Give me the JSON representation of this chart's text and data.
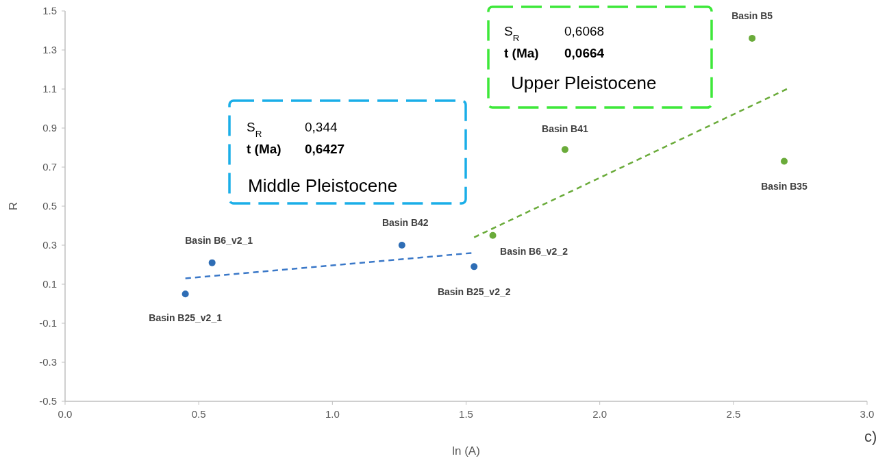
{
  "chart_data": {
    "type": "scatter",
    "xlabel": "ln (A)",
    "ylabel": "R",
    "xlim": [
      0,
      3
    ],
    "xticks": [
      {
        "value": 0,
        "label": "0.0"
      },
      {
        "value": 0.5,
        "label": "0.5"
      },
      {
        "value": 1,
        "label": "1.0"
      },
      {
        "value": 1.5,
        "label": "1.5"
      },
      {
        "value": 2,
        "label": "2.0"
      },
      {
        "value": 2.5,
        "label": "2.5"
      },
      {
        "value": 3,
        "label": "3.0"
      }
    ],
    "ylim": [
      -0.5,
      1.5
    ],
    "yticks": [
      -0.5,
      -0.3,
      -0.1,
      0.1,
      0.3,
      0.5,
      0.7,
      0.9,
      1.1,
      1.3,
      1.5
    ],
    "grid": false,
    "series": [
      {
        "color": "#2e6db5",
        "marker": "circle",
        "x": [
          0.45,
          0.55,
          1.26,
          1.53
        ],
        "values": [
          0.05,
          0.21,
          0.3,
          0.19
        ]
      },
      {
        "color": "#6aab3a",
        "marker": "circle",
        "x": [
          1.6,
          1.87,
          2.57,
          2.69
        ],
        "values": [
          0.35,
          0.79,
          1.36,
          0.73
        ]
      },
      {
        "type": "line",
        "color": "#3a78c8",
        "line_style": "dashed",
        "marker": "none",
        "x": [
          0.45,
          1.52
        ],
        "values": [
          0.13,
          0.26
        ]
      },
      {
        "type": "line",
        "color": "#6aab3a",
        "line_style": "dashed",
        "marker": "none",
        "x": [
          1.53,
          2.7
        ],
        "values": [
          0.34,
          1.1
        ]
      }
    ],
    "annotations": [
      {
        "text": "Basin B25_v2_1",
        "x": 0.45,
        "y": 0.05
      },
      {
        "text": "Basin B6_v2_1",
        "x": 0.55,
        "y": 0.21
      },
      {
        "text": "Basin B42",
        "x": 1.26,
        "y": 0.3
      },
      {
        "text": "Basin B25_v2_2",
        "x": 1.53,
        "y": 0.19
      },
      {
        "text": "Basin B6_v2_2",
        "x": 1.6,
        "y": 0.35
      },
      {
        "text": "Basin B41",
        "x": 1.87,
        "y": 0.79
      },
      {
        "text": "Basin B5",
        "x": 2.57,
        "y": 1.36
      },
      {
        "text": "Basin B35",
        "x": 2.69,
        "y": 0.73
      },
      "S$_{R}$",
      "0,344",
      "t (Ma)",
      "0,6427",
      "Middle Pleistocene",
      "S$_{R}$",
      "0,6068",
      "t (Ma)",
      "0,0664",
      "Upper Pleistocene",
      "c)"
    ]
  }
}
